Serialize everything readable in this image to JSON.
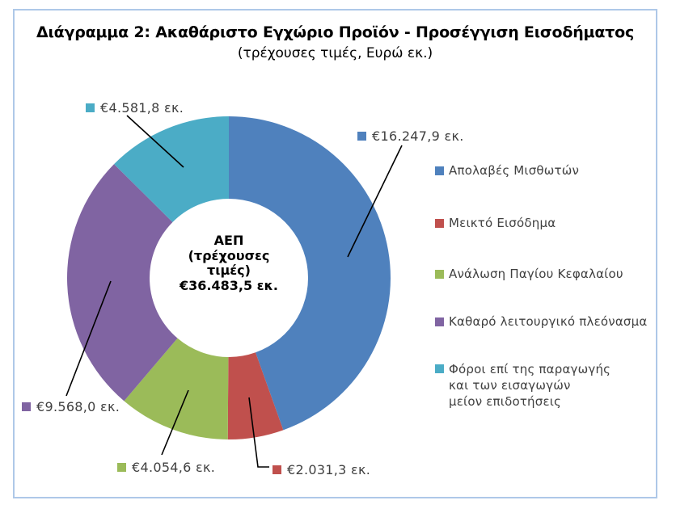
{
  "chart_data": {
    "type": "pie",
    "subtype": "donut",
    "title": "Διάγραμμα 2: Ακαθάριστο Εγχώριο Προϊόν - Προσέγγιση Εισοδήματος",
    "subtitle": "(τρέχουσες τιμές, Ευρώ εκ.)",
    "unit": "Ευρώ εκ.",
    "total_value": 36483.5,
    "start_angle_deg": 0,
    "direction": "clockwise",
    "hole_ratio": 0.49,
    "legend_position": "right",
    "center_label": {
      "lines": [
        "ΑΕΠ",
        "(τρέχουσες",
        "τιμές)",
        "€36.483,5 εκ."
      ]
    },
    "segments": [
      {
        "label": "Απολαβές Μισθωτών",
        "value": 16247.9,
        "data_label": "€16.247,9 εκ.",
        "color": "#4F81BD"
      },
      {
        "label": "Μεικτό Εισόδημα",
        "value": 2031.3,
        "data_label": "€2.031,3 εκ.",
        "color": "#C0504D"
      },
      {
        "label": "Ανάλωση Παγίου Κεφαλαίου",
        "value": 4054.6,
        "data_label": "€4.054,6 εκ.",
        "color": "#9BBB59"
      },
      {
        "label": "Καθαρό λειτουργικό πλεόνασμα",
        "value": 9568.0,
        "data_label": "€9.568,0 εκ.",
        "color": "#8064A2"
      },
      {
        "label": "Φόροι επί της παραγωγής και των εισαγωγών μείον επιδοτήσεις",
        "legend_lines": [
          "Φόροι επί της παραγωγής",
          "και των εισαγωγών",
          "μείον επιδοτήσεις"
        ],
        "value": 4581.8,
        "data_label": "€4.581,8 εκ.",
        "color": "#4BACC6"
      }
    ]
  },
  "colors": {
    "frame_border": "#AEC8E8",
    "label_text": "#404040",
    "leader_line": "#000000"
  }
}
